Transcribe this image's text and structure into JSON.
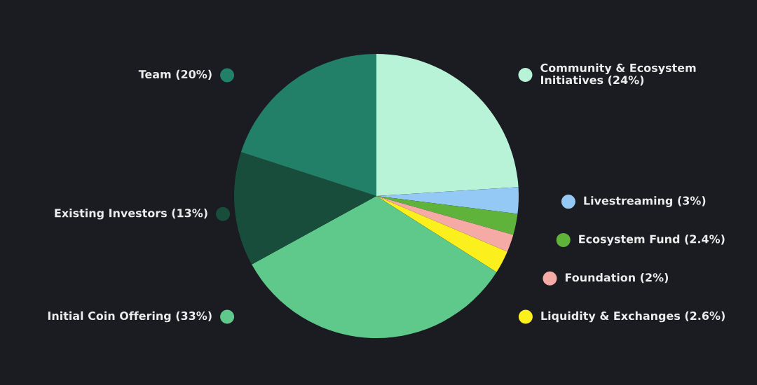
{
  "chart_data": {
    "type": "pie",
    "categories": [
      "Community & Ecosystem\nInitiatives",
      "Livestreaming",
      "Ecosystem Fund",
      "Foundation",
      "Liquidity & Exchanges",
      "Initial Coin Offering",
      "Existing Investors",
      "Team"
    ],
    "values": [
      24,
      3,
      2.4,
      2,
      2.6,
      33,
      13,
      20
    ],
    "value_labels": [
      "(24%)",
      "(3%)",
      "(2.4%)",
      "(2%)",
      "(2.6%)",
      "(33%)",
      "(13%)",
      "(20%)"
    ],
    "colors": [
      "#b8f3d8",
      "#94c8f5",
      "#5fb33a",
      "#f6aaa6",
      "#fbf01e",
      "#5ec98a",
      "#184d3c",
      "#228069"
    ],
    "legend": "right"
  }
}
